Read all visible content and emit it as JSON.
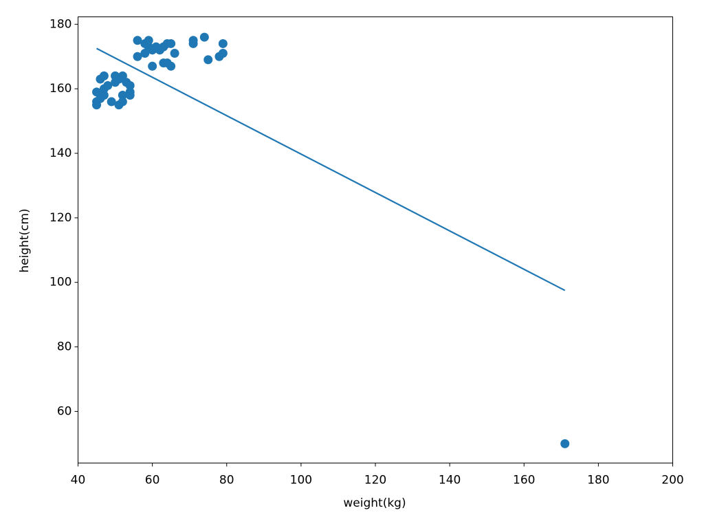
{
  "chart_data": {
    "type": "scatter",
    "x_label": "weight(kg)",
    "y_label": "height(cm)",
    "xlim": [
      40,
      200
    ],
    "ylim": [
      44,
      182.3
    ],
    "xticks": [
      40,
      60,
      80,
      100,
      120,
      140,
      160,
      180,
      200
    ],
    "yticks": [
      60,
      80,
      100,
      120,
      140,
      160,
      180
    ],
    "grid": false,
    "series": [
      {
        "type": "scatter",
        "color": "#1f77b4",
        "x": [
          45,
          45,
          45,
          46,
          46,
          47,
          47,
          47,
          48,
          49,
          50,
          50,
          51,
          51,
          52,
          52,
          52,
          53,
          54,
          54,
          54,
          56,
          56,
          58,
          58,
          59,
          59,
          60,
          60,
          61,
          62,
          63,
          63,
          64,
          64,
          65,
          65,
          66,
          71,
          71,
          74,
          75,
          78,
          79,
          79,
          171
        ],
        "values": [
          159,
          156,
          155,
          157,
          163,
          164,
          160,
          158,
          161,
          156,
          164,
          162,
          155,
          163,
          164,
          158,
          156,
          162,
          161,
          159,
          158,
          175,
          170,
          171,
          174,
          175,
          173,
          172,
          167,
          173,
          172,
          173,
          168,
          174,
          168,
          174,
          167,
          171,
          175,
          174,
          176,
          169,
          170,
          171,
          174,
          50
        ]
      },
      {
        "type": "line",
        "color": "#1f77b4",
        "x": [
          45,
          171
        ],
        "values": [
          172.5,
          97.5
        ]
      }
    ]
  }
}
